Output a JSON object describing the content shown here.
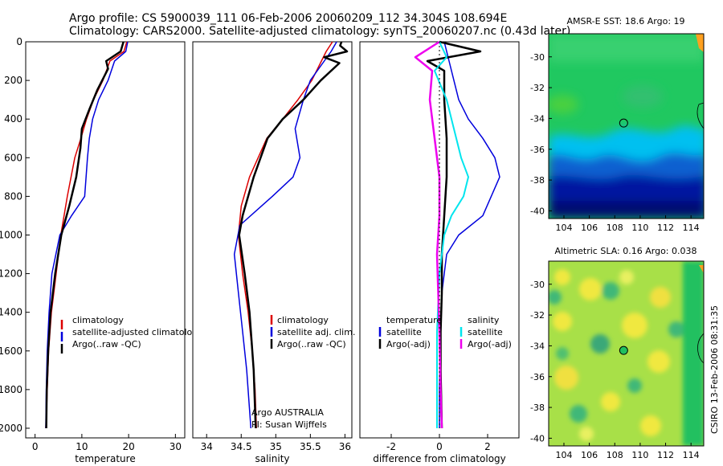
{
  "header": {
    "line1": "Argo profile: CS 5900039_111 06-Feb-2006 20060209_112 34.304S 108.694E",
    "line2": "Climatology: CARS2000. Satellite-adjusted climatology: synTS_20060207.nc (0.43d later)"
  },
  "side_label": "CSIRO 13-Feb-2006 08:31:35",
  "chart_data": [
    {
      "id": "temperature",
      "type": "line",
      "xlabel": "temperature",
      "ylabel": "",
      "xlim": [
        -2,
        32
      ],
      "ylim": [
        2050,
        0
      ],
      "xticks": [
        0,
        10,
        20,
        30
      ],
      "yticks": [
        0,
        200,
        400,
        600,
        800,
        1000,
        1200,
        1400,
        1600,
        1800,
        2000
      ],
      "legend": [
        {
          "label": "climatology",
          "color": "#dd0000"
        },
        {
          "label": "satellite-adjusted climatology",
          "color": "#0000dd"
        },
        {
          "label": "Argo(..raw -QC)",
          "color": "#000000"
        }
      ],
      "series": [
        {
          "name": "climatology",
          "color": "#dd0000",
          "width": 1.5,
          "x": [
            19.6,
            19.0,
            16.0,
            14.5,
            12.5,
            11.0,
            9.8,
            8.5,
            6.9,
            5.5,
            4.5,
            3.5,
            2.9,
            2.6,
            2.4,
            2.3
          ],
          "y": [
            0,
            50,
            100,
            200,
            300,
            400,
            500,
            600,
            800,
            1000,
            1200,
            1400,
            1600,
            1800,
            1950,
            2000
          ]
        },
        {
          "name": "satellite-adjusted climatology",
          "color": "#0000dd",
          "width": 1.5,
          "x": [
            19.8,
            19.4,
            17.0,
            15.6,
            13.6,
            12.3,
            11.6,
            11.2,
            10.6,
            7.8,
            5.3,
            3.6,
            3.0,
            2.6,
            2.4,
            2.3
          ],
          "y": [
            0,
            50,
            100,
            200,
            300,
            400,
            500,
            600,
            800,
            900,
            1000,
            1200,
            1400,
            1600,
            1800,
            2000
          ]
        },
        {
          "name": "Argo(..raw -QC)",
          "color": "#000000",
          "width": 2.5,
          "x": [
            18.9,
            18.3,
            15.2,
            15.6,
            13.3,
            11.6,
            10.0,
            9.7,
            8.8,
            7.3,
            5.6,
            4.3,
            3.3,
            2.8,
            2.5,
            2.4
          ],
          "y": [
            0,
            50,
            100,
            140,
            250,
            350,
            450,
            550,
            700,
            850,
            1000,
            1200,
            1400,
            1600,
            1800,
            2000
          ]
        }
      ],
      "annotations": []
    },
    {
      "id": "salinity",
      "type": "line",
      "xlabel": "salinity",
      "ylabel": "",
      "xlim": [
        33.8,
        36.1
      ],
      "ylim": [
        2050,
        0
      ],
      "xticks": [
        34,
        34.5,
        35,
        35.5,
        36
      ],
      "yticks": [],
      "legend": [
        {
          "label": "climatology",
          "color": "#dd0000"
        },
        {
          "label": "satellite adj. clim.",
          "color": "#0000dd"
        },
        {
          "label": "Argo(..raw -QC)",
          "color": "#000000"
        }
      ],
      "series": [
        {
          "name": "climatology",
          "color": "#dd0000",
          "width": 1.5,
          "x": [
            35.82,
            35.73,
            35.66,
            35.52,
            35.32,
            35.1,
            34.87,
            34.62,
            34.5,
            34.46,
            34.52,
            34.6,
            34.66,
            34.7,
            34.72
          ],
          "y": [
            0,
            50,
            100,
            200,
            300,
            400,
            500,
            700,
            850,
            1000,
            1200,
            1400,
            1600,
            1800,
            2000
          ]
        },
        {
          "name": "satellite adj. clim.",
          "color": "#0000dd",
          "width": 1.5,
          "x": [
            35.88,
            35.8,
            35.7,
            35.5,
            35.4,
            35.28,
            35.35,
            35.25,
            34.95,
            34.48,
            34.4,
            34.46,
            34.52,
            34.58,
            34.64
          ],
          "y": [
            0,
            50,
            100,
            200,
            300,
            450,
            600,
            700,
            800,
            950,
            1100,
            1300,
            1500,
            1700,
            2000
          ]
        },
        {
          "name": "Argo(..raw -QC)",
          "color": "#000000",
          "width": 2.5,
          "x": [
            35.95,
            35.93,
            36.03,
            35.7,
            35.92,
            35.65,
            35.4,
            35.1,
            34.88,
            34.68,
            34.52,
            34.47,
            34.55,
            34.62,
            34.68,
            34.71
          ],
          "y": [
            0,
            20,
            50,
            80,
            110,
            200,
            300,
            400,
            500,
            700,
            900,
            1000,
            1200,
            1400,
            1700,
            2000
          ]
        }
      ],
      "annotations": [
        "Argo AUSTRALIA",
        "PI: Susan Wijffels"
      ]
    },
    {
      "id": "difference",
      "type": "line",
      "xlabel": "difference from climatology",
      "ylabel": "",
      "xlim": [
        -3.3,
        3.3
      ],
      "ylim": [
        2050,
        0
      ],
      "xticks": [
        -2,
        0,
        2
      ],
      "yticks": [],
      "legend_headers": [
        "temperature",
        "salinity"
      ],
      "legend": [
        {
          "label": "satellite",
          "color": "#0000dd"
        },
        {
          "label": "Argo(-adj)",
          "color": "#000000"
        },
        {
          "label": "satellite",
          "color": "#00e5ee"
        },
        {
          "label": "Argo(-adj)",
          "color": "#ee00ee"
        }
      ],
      "series": [
        {
          "name": "temperature satellite",
          "color": "#0000dd",
          "width": 1.5,
          "x": [
            0.2,
            0.4,
            0.6,
            0.8,
            1.2,
            1.8,
            2.3,
            2.5,
            1.8,
            0.8,
            0.3,
            0.1,
            0.05,
            0.0,
            0.0
          ],
          "y": [
            0,
            100,
            200,
            300,
            400,
            500,
            600,
            700,
            900,
            1000,
            1100,
            1300,
            1500,
            1800,
            2000
          ]
        },
        {
          "name": "temperature Argo(-adj)",
          "color": "#000000",
          "width": 2.5,
          "x": [
            0.0,
            1.7,
            -0.5,
            0.2,
            0.2,
            0.3,
            0.3,
            0.2,
            0.1,
            0.1,
            0.05,
            0.05,
            0.1
          ],
          "y": [
            0,
            50,
            100,
            150,
            300,
            500,
            700,
            900,
            1100,
            1300,
            1500,
            1700,
            2000
          ]
        },
        {
          "name": "salinity satellite",
          "color": "#00e5ee",
          "width": 2,
          "x": [
            0.0,
            0.3,
            -0.2,
            0.3,
            0.6,
            0.9,
            1.2,
            1.0,
            0.5,
            0.2,
            0.0,
            -0.1,
            -0.1
          ],
          "y": [
            0,
            80,
            150,
            300,
            450,
            600,
            700,
            800,
            900,
            1000,
            1200,
            1500,
            2000
          ]
        },
        {
          "name": "salinity Argo(-adj)",
          "color": "#ee00ee",
          "width": 2.5,
          "x": [
            0.0,
            -1.0,
            -0.3,
            -0.4,
            -0.2,
            0.0,
            0.0,
            -0.1,
            -0.05,
            0.0,
            0.05,
            0.1
          ],
          "y": [
            0,
            80,
            150,
            300,
            500,
            700,
            900,
            1100,
            1300,
            1500,
            1800,
            2000
          ]
        },
        {
          "name": "zero",
          "color": "#000000",
          "width": 1,
          "dashed": true,
          "x": [
            0,
            0
          ],
          "y": [
            0,
            2000
          ]
        }
      ],
      "annotations": []
    }
  ],
  "maps": [
    {
      "id": "sst",
      "title": "AMSR-E SST: 18.6 Argo: 19",
      "xticks": [
        104,
        106,
        108,
        110,
        112,
        114
      ],
      "yticks": [
        -30,
        -32,
        -34,
        -36,
        -38,
        -40
      ],
      "xlim": [
        102.8,
        115
      ],
      "ylim": [
        -40.5,
        -28.5
      ],
      "marker": {
        "lon": 108.7,
        "lat": -34.3
      },
      "colors": {
        "north": "#20c860",
        "front": "#00c0f0",
        "south": "#0018a0",
        "deep": "#001070",
        "warm": "#ffa020"
      }
    },
    {
      "id": "sla",
      "title": "Altimetric SLA: 0.16 Argo: 0.038",
      "xticks": [
        104,
        106,
        108,
        110,
        112,
        114
      ],
      "yticks": [
        -30,
        -32,
        -34,
        -36,
        -38,
        -40
      ],
      "xlim": [
        102.8,
        115
      ],
      "ylim": [
        -40.5,
        -28.5
      ],
      "marker": {
        "lon": 108.7,
        "lat": -34.3
      },
      "colors": {
        "base": "#a8e048",
        "high": "#f0e840",
        "low": "#40b878",
        "land": "#20c060"
      }
    }
  ]
}
